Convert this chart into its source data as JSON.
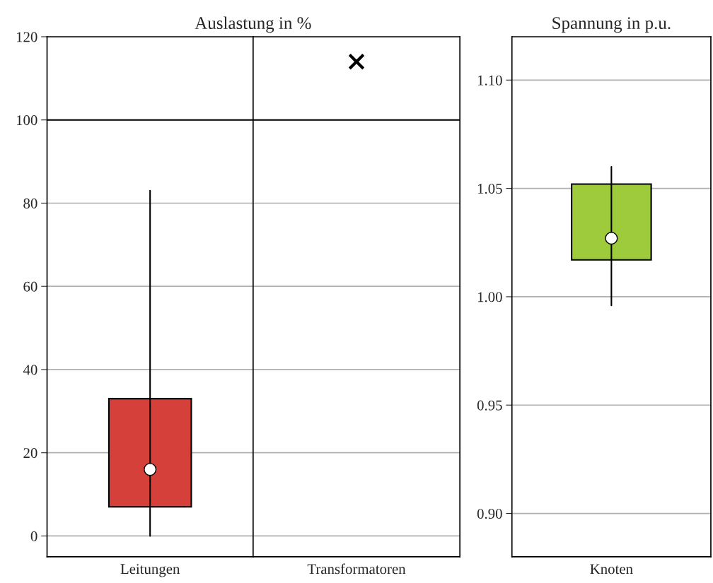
{
  "chart_data": [
    {
      "type": "box",
      "title": "Auslastung in %",
      "categories": [
        "Leitungen"
      ],
      "ylim": [
        -5,
        120
      ],
      "yticks": [
        0,
        20,
        40,
        60,
        80,
        100,
        120
      ],
      "grid": "y",
      "series": [
        {
          "color": "#d6403a",
          "boxes": [
            {
              "low": 0,
              "q1": 7,
              "median": 16,
              "q3": 33,
              "high": 83
            }
          ]
        }
      ],
      "ref_lines": [
        {
          "axis": "y",
          "value": 100,
          "color": "#000000"
        }
      ]
    },
    {
      "type": "scatter",
      "categories": [
        "Transformatoren"
      ],
      "ylim": [
        -5,
        120
      ],
      "tick_labels": "x",
      "grid": "y",
      "marker": "cross",
      "series": [
        {
          "color": "#000000",
          "values": [
            114
          ]
        }
      ],
      "ref_lines": [
        {
          "axis": "y",
          "value": 100,
          "color": "#000000"
        }
      ]
    },
    {
      "type": "box",
      "title": "Spannung in p.u.",
      "categories": [
        "Knoten"
      ],
      "ylim": [
        0.88,
        1.12
      ],
      "yticks": [
        {
          "value": 0.9,
          "label": "0.90"
        },
        {
          "value": 0.95,
          "label": "0.95"
        },
        {
          "value": 1.0,
          "label": "1.00"
        },
        {
          "value": 1.05,
          "label": "1.05"
        },
        {
          "value": 1.1,
          "label": "1.10"
        }
      ],
      "grid": "y",
      "series": [
        {
          "color": "#9ecb3c",
          "boxes": [
            {
              "low": 0.996,
              "q1": 1.017,
              "median": 1.027,
              "q3": 1.052,
              "high": 1.06
            }
          ]
        }
      ]
    }
  ]
}
